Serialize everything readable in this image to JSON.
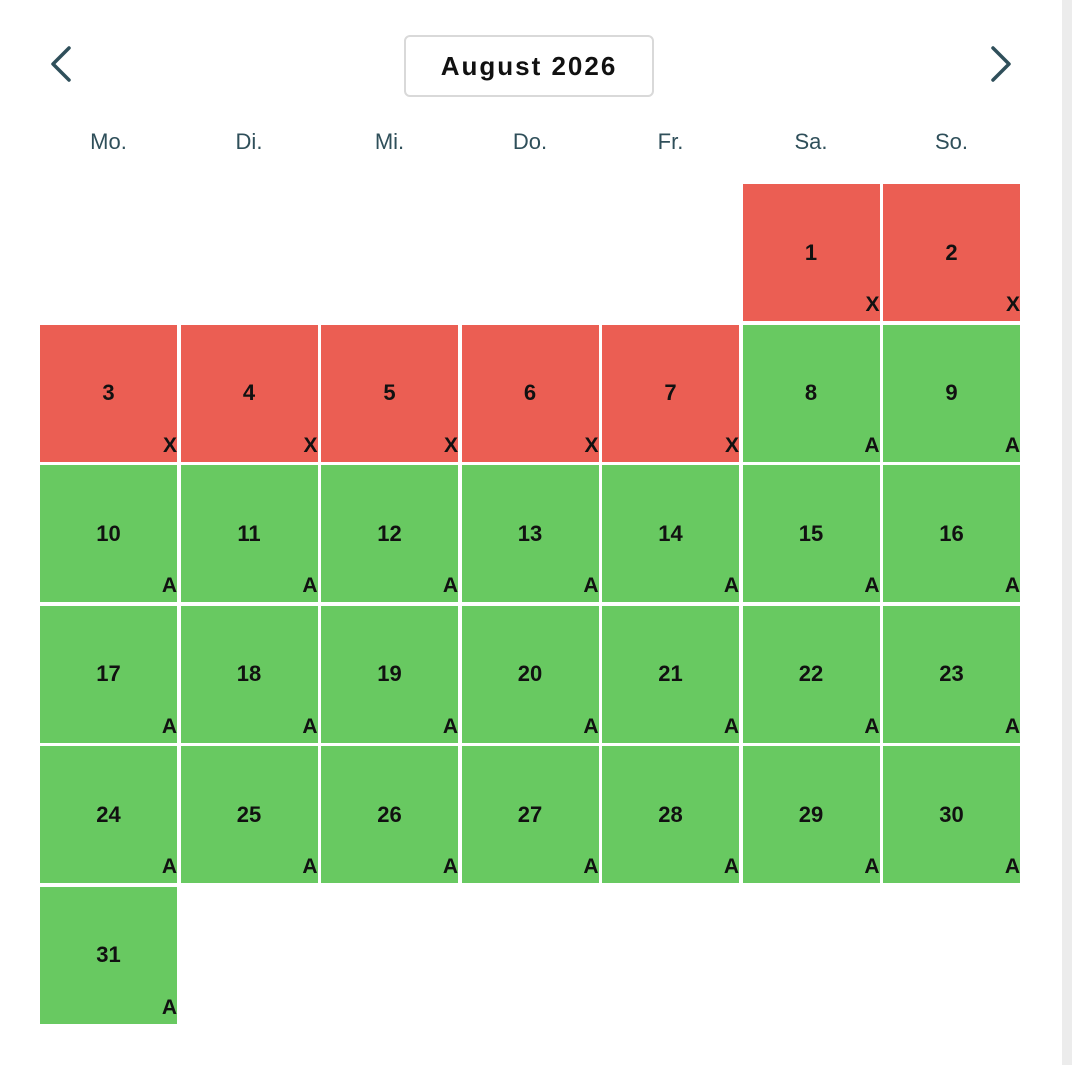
{
  "header": {
    "month_label": "August 2026",
    "prev_icon": "chevron-left-icon",
    "next_icon": "chevron-right-icon"
  },
  "weekdays": [
    "Mo.",
    "Di.",
    "Mi.",
    "Do.",
    "Fr.",
    "Sa.",
    "So."
  ],
  "colors": {
    "booked": "#eb5e53",
    "available": "#68c961",
    "text": "#111111",
    "weekday_text": "#2f4f5a"
  },
  "calendar": {
    "leading_empty_days": 5,
    "days": [
      {
        "day": "1",
        "status": "X"
      },
      {
        "day": "2",
        "status": "X"
      },
      {
        "day": "3",
        "status": "X"
      },
      {
        "day": "4",
        "status": "X"
      },
      {
        "day": "5",
        "status": "X"
      },
      {
        "day": "6",
        "status": "X"
      },
      {
        "day": "7",
        "status": "X"
      },
      {
        "day": "8",
        "status": "A"
      },
      {
        "day": "9",
        "status": "A"
      },
      {
        "day": "10",
        "status": "A"
      },
      {
        "day": "11",
        "status": "A"
      },
      {
        "day": "12",
        "status": "A"
      },
      {
        "day": "13",
        "status": "A"
      },
      {
        "day": "14",
        "status": "A"
      },
      {
        "day": "15",
        "status": "A"
      },
      {
        "day": "16",
        "status": "A"
      },
      {
        "day": "17",
        "status": "A"
      },
      {
        "day": "18",
        "status": "A"
      },
      {
        "day": "19",
        "status": "A"
      },
      {
        "day": "20",
        "status": "A"
      },
      {
        "day": "21",
        "status": "A"
      },
      {
        "day": "22",
        "status": "A"
      },
      {
        "day": "23",
        "status": "A"
      },
      {
        "day": "24",
        "status": "A"
      },
      {
        "day": "25",
        "status": "A"
      },
      {
        "day": "26",
        "status": "A"
      },
      {
        "day": "27",
        "status": "A"
      },
      {
        "day": "28",
        "status": "A"
      },
      {
        "day": "29",
        "status": "A"
      },
      {
        "day": "30",
        "status": "A"
      },
      {
        "day": "31",
        "status": "A"
      }
    ]
  }
}
